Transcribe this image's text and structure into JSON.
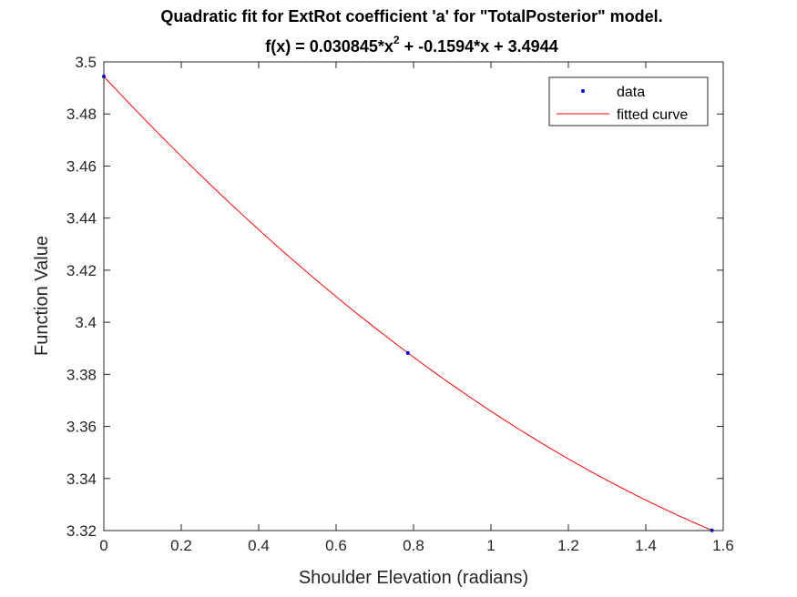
{
  "chart_data": {
    "type": "line",
    "title": "Quadratic fit for ExtRot coefficient 'a' for \"TotalPosterior\" model.",
    "subtitle_parts": {
      "lhs": "f(x) = 0.030845*x",
      "exponent": "2",
      "rhs": " + -0.1594*x + 3.4944"
    },
    "xlabel": "Shoulder Elevation (radians)",
    "ylabel": "Function Value",
    "xlim": [
      0,
      1.6
    ],
    "ylim": [
      3.32,
      3.5
    ],
    "xticks": [
      "0",
      "0.2",
      "0.4",
      "0.6",
      "0.8",
      "1",
      "1.2",
      "1.4",
      "1.6"
    ],
    "yticks": [
      "3.32",
      "3.34",
      "3.36",
      "3.38",
      "3.4",
      "3.42",
      "3.44",
      "3.46",
      "3.48",
      "3.5"
    ],
    "grid": false,
    "legend_position": "top-right",
    "series": [
      {
        "name": "data",
        "kind": "scatter",
        "color": "#0000ff",
        "x": [
          0,
          0.7854,
          1.5708
        ],
        "y": [
          3.4944,
          3.3882,
          3.3201
        ]
      },
      {
        "name": "fitted curve",
        "kind": "line",
        "color": "#ff0000",
        "coefficients": [
          0.030845,
          -0.1594,
          3.4944
        ],
        "x_range": [
          0,
          1.5708
        ]
      }
    ]
  }
}
